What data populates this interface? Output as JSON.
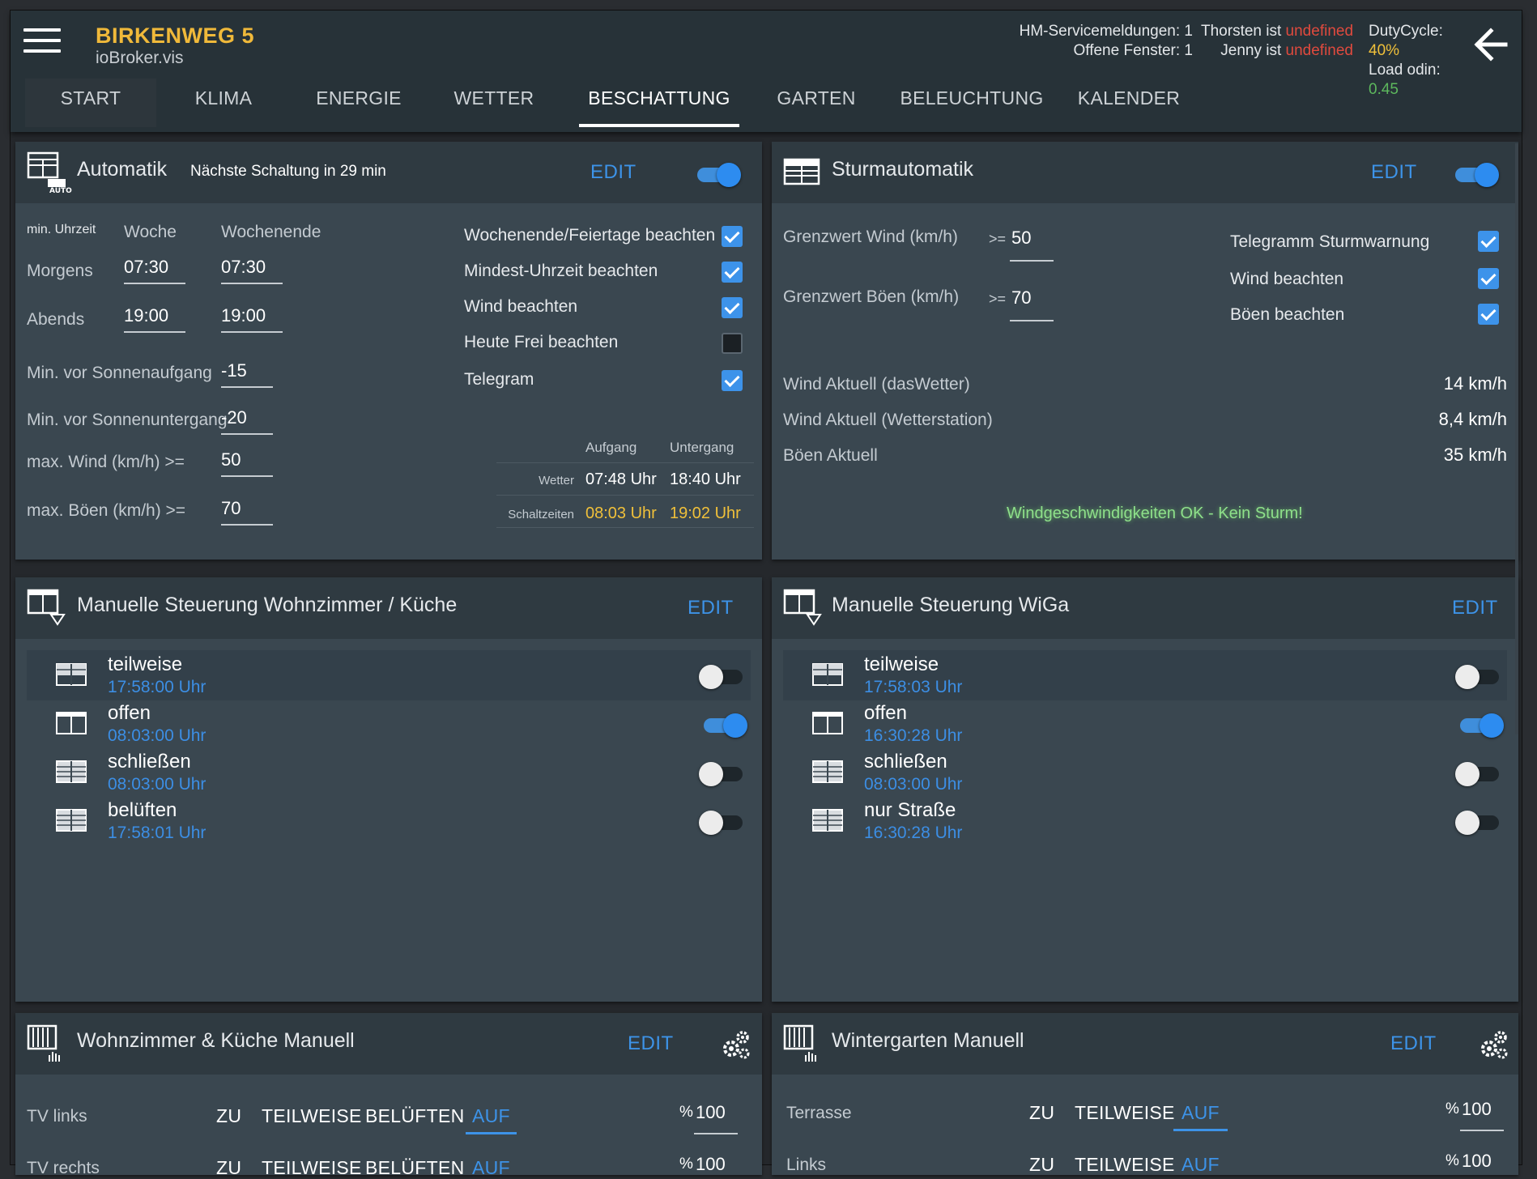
{
  "header": {
    "title": "BIRKENWEG 5",
    "subtitle": "ioBroker.vis",
    "hm_service": "HM-Servicemeldungen: 1",
    "open_windows": "Offene Fenster: 1",
    "thorsten_prefix": "Thorsten ist",
    "thorsten_value": "undefined",
    "jenny_prefix": "Jenny ist",
    "jenny_value": "undefined",
    "duty_prefix": "DutyCycle:",
    "duty_value": "40%",
    "load_prefix": "Load odin:",
    "load_value": "0.45"
  },
  "tabs": [
    "START",
    "KLIMA",
    "ENERGIE",
    "WETTER",
    "BESCHATTUNG",
    "GARTEN",
    "BELEUCHTUNG",
    "KALENDER"
  ],
  "active_tab": "BESCHATTUNG",
  "automatik": {
    "title": "Automatik",
    "note": "Nächste Schaltung in 29 min",
    "edit": "EDIT",
    "enabled": true,
    "icon_badge": "AUTO",
    "col_min": "min. Uhrzeit",
    "col_week": "Woche",
    "col_weekend": "Wochenende",
    "morning_label": "Morgens",
    "morning_week": "07:30",
    "morning_weekend": "07:30",
    "evening_label": "Abends",
    "evening_week": "19:00",
    "evening_weekend": "19:00",
    "sunrise_label": "Min. vor Sonnenaufgang",
    "sunrise_val": "-15",
    "sunset_label": "Min. vor Sonnenuntergang",
    "sunset_val": "-20",
    "wind_label": "max. Wind (km/h) >=",
    "wind_val": "50",
    "gust_label": "max. Böen (km/h) >=",
    "gust_val": "70",
    "checks": [
      {
        "label": "Wochenende/Feiertage beachten",
        "checked": true
      },
      {
        "label": "Mindest-Uhrzeit beachten",
        "checked": true
      },
      {
        "label": "Wind beachten",
        "checked": true
      },
      {
        "label": "Heute Frei beachten",
        "checked": false
      },
      {
        "label": "Telegram",
        "checked": true
      }
    ],
    "sun_head_rise": "Aufgang",
    "sun_head_set": "Untergang",
    "weather_label": "Wetter",
    "weather_rise": "07:48 Uhr",
    "weather_set": "18:40 Uhr",
    "switch_label": "Schaltzeiten",
    "switch_rise": "08:03 Uhr",
    "switch_set": "19:02 Uhr"
  },
  "sturm": {
    "title": "Sturmautomatik",
    "edit": "EDIT",
    "enabled": true,
    "wind_limit_label": "Grenzwert Wind (km/h)",
    "wind_limit_op": ">=",
    "wind_limit_val": "50",
    "gust_limit_label": "Grenzwert Böen (km/h)",
    "gust_limit_op": ">=",
    "gust_limit_val": "70",
    "checks": [
      {
        "label": "Telegramm Sturmwarnung",
        "checked": true
      },
      {
        "label": "Wind beachten",
        "checked": true
      },
      {
        "label": "Böen beachten",
        "checked": true
      }
    ],
    "wind_now_label": "Wind Aktuell (dasWetter)",
    "wind_now_val": "14 km/h",
    "wind_station_label": "Wind Aktuell (Wetterstation)",
    "wind_station_val": "8,4 km/h",
    "gust_now_label": "Böen Aktuell",
    "gust_now_val": "35 km/h",
    "status_msg": "Windgeschwindigkeiten OK - Kein Sturm!"
  },
  "manual_wz": {
    "title": "Manuelle Steuerung Wohnzimmer / Küche",
    "edit": "EDIT",
    "items": [
      {
        "name": "teilweise",
        "time": "17:58:00 Uhr",
        "on": false
      },
      {
        "name": "offen",
        "time": "08:03:00 Uhr",
        "on": true
      },
      {
        "name": "schließen",
        "time": "08:03:00 Uhr",
        "on": false
      },
      {
        "name": "belüften",
        "time": "17:58:01 Uhr",
        "on": false
      }
    ]
  },
  "manual_wiga": {
    "title": "Manuelle Steuerung WiGa",
    "edit": "EDIT",
    "items": [
      {
        "name": "teilweise",
        "time": "17:58:03 Uhr",
        "on": false
      },
      {
        "name": "offen",
        "time": "16:30:28 Uhr",
        "on": true
      },
      {
        "name": "schließen",
        "time": "08:03:00 Uhr",
        "on": false
      },
      {
        "name": "nur Straße",
        "time": "16:30:28 Uhr",
        "on": false
      }
    ]
  },
  "wz_manual": {
    "title": "Wohnzimmer & Küche Manuell",
    "edit": "EDIT",
    "rows": [
      {
        "label": "TV links",
        "buttons": [
          "ZU",
          "TEILWEISE",
          "BELÜFTEN",
          "AUF"
        ],
        "selected": "AUF",
        "pct_label": "%",
        "pct": "100"
      },
      {
        "label": "TV rechts",
        "buttons": [
          "ZU",
          "TEILWEISE",
          "BELÜFTEN",
          "AUF"
        ],
        "selected": "AUF",
        "pct_label": "%",
        "pct": "100"
      }
    ]
  },
  "wg_manual": {
    "title": "Wintergarten Manuell",
    "edit": "EDIT",
    "rows": [
      {
        "label": "Terrasse",
        "buttons": [
          "ZU",
          "TEILWEISE",
          "AUF"
        ],
        "selected": "AUF",
        "pct_label": "%",
        "pct": "100"
      },
      {
        "label": "Links",
        "buttons": [
          "ZU",
          "TEILWEISE",
          "AUF"
        ],
        "selected": "AUF",
        "pct_label": "%",
        "pct": "100"
      }
    ]
  },
  "colors": {
    "accent": "#3d93e8",
    "title": "#f0b93a",
    "warning": "#e04a3e",
    "ok": "#8ee08a"
  },
  "icons": [
    "menu-icon",
    "back-arrow-icon",
    "blind-auto-icon",
    "blind-icon",
    "blind-hand-icon",
    "gear-icon"
  ]
}
